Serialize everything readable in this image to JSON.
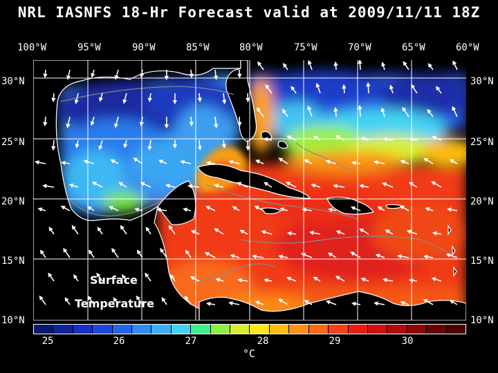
{
  "title": "NRL IASNFS  18-Hr Forecast valid at 2009/11/11 18Z",
  "lon_labels": [
    "100°W",
    "95°W",
    "90°W",
    "85°W",
    "80°W",
    "75°W",
    "70°W",
    "65°W",
    "60°W"
  ],
  "lat_labels": [
    "30°N",
    "25°N",
    "20°N",
    "15°N",
    "10°N"
  ],
  "caption": {
    "line1": "Surface",
    "line2": "Temperature"
  },
  "colorbar": {
    "colors": [
      "#0a1a6e",
      "#10239a",
      "#1630c8",
      "#1c48e0",
      "#2066e8",
      "#2f8cf0",
      "#3cb0f4",
      "#44d2f2",
      "#3ef08a",
      "#8cf040",
      "#d8f030",
      "#f8e818",
      "#fcbc10",
      "#fc9014",
      "#fc6818",
      "#f84018",
      "#ec1c14",
      "#d01010",
      "#b00a0a",
      "#8c0606",
      "#6a0404",
      "#4a0202"
    ],
    "ticks": [
      "25",
      "26",
      "27",
      "28",
      "29",
      "30"
    ],
    "units": "°C"
  },
  "legend_colors": {
    "land": "#000000",
    "coast": "#ffffff",
    "grid": "#ffffff",
    "vectors": "#ffffff",
    "isobath": "#8a8a8a"
  }
}
